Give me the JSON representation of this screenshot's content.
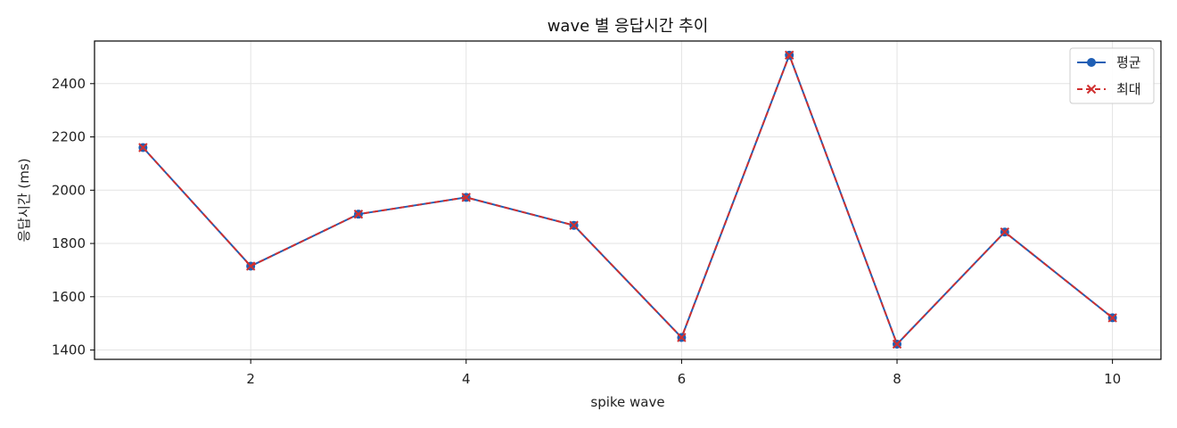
{
  "chart_data": {
    "type": "line",
    "title": "wave 별 응답시간 추이",
    "xlabel": "spike wave",
    "ylabel": "응답시간 (ms)",
    "x": [
      1,
      2,
      3,
      4,
      5,
      6,
      7,
      8,
      9,
      10
    ],
    "xlim": [
      0.55,
      10.45
    ],
    "ylim": [
      1365,
      2560
    ],
    "xticks": [
      2,
      4,
      6,
      8,
      10
    ],
    "yticks": [
      1400,
      1600,
      1800,
      2000,
      2200,
      2400
    ],
    "grid": true,
    "legend_position": "top-right",
    "series": [
      {
        "name": "평균",
        "color": "#1f5fb5",
        "marker": "circle",
        "linestyle": "solid",
        "values": [
          2160,
          1715,
          1910,
          1973,
          1868,
          1447,
          2507,
          1422,
          1843,
          1521
        ]
      },
      {
        "name": "최대",
        "color": "#d03030",
        "marker": "x",
        "linestyle": "dashed",
        "values": [
          2160,
          1715,
          1910,
          1973,
          1868,
          1447,
          2507,
          1422,
          1843,
          1521
        ]
      }
    ]
  }
}
